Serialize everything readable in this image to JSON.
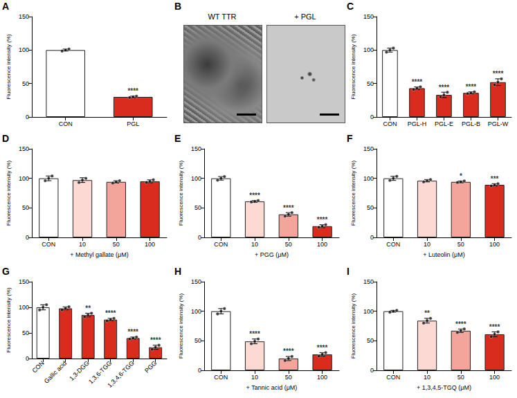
{
  "chart_data": [
    {
      "label": "A",
      "type": "bar",
      "categories": [
        "CON",
        "PGL"
      ],
      "values": [
        100,
        30
      ],
      "errors": [
        1.5,
        1.2
      ],
      "points": [
        [
          98.5,
          100,
          101.5
        ],
        [
          29,
          30,
          31
        ]
      ],
      "annotations": [
        null,
        "****"
      ],
      "colors": [
        "#ffffff",
        "#d92b1e"
      ],
      "ylabel": "Fluorescence intensity (%)",
      "ylim": [
        0,
        150
      ],
      "yticks": [
        0,
        50,
        100,
        150
      ]
    },
    {
      "label": "C",
      "type": "bar",
      "categories": [
        "CON",
        "PGL-H",
        "PGL-E",
        "PGL-B",
        "PGL-W"
      ],
      "values": [
        100,
        43,
        33,
        36,
        52
      ],
      "errors": [
        3,
        2,
        4,
        1.5,
        5
      ],
      "points": [
        [
          97,
          100,
          103
        ],
        [
          41,
          43,
          45
        ],
        [
          30,
          33,
          37
        ],
        [
          35,
          36,
          37.5
        ],
        [
          48,
          52,
          57
        ]
      ],
      "annotations": [
        null,
        "****",
        "****",
        "****",
        "****"
      ],
      "colors": [
        "#ffffff",
        "#d92b1e",
        "#d92b1e",
        "#d92b1e",
        "#d92b1e"
      ],
      "ylabel": "Fluorescence intensity (%)",
      "ylim": [
        0,
        150
      ],
      "yticks": [
        0,
        50,
        100,
        150
      ]
    },
    {
      "label": "D",
      "type": "bar",
      "categories": [
        "CON",
        "10",
        "50",
        "100"
      ],
      "values": [
        100,
        97,
        94,
        95
      ],
      "errors": [
        4,
        4,
        2,
        2.5
      ],
      "points": [
        [
          96,
          100,
          104
        ],
        [
          93,
          97,
          100
        ],
        [
          92,
          94,
          96
        ],
        [
          93,
          95,
          97.5
        ]
      ],
      "annotations": [
        null,
        null,
        null,
        null
      ],
      "colors": [
        "#ffffff",
        "#fcd9d3",
        "#f3a49b",
        "#d92b1e"
      ],
      "xlabel": "+ Methyl gallate (μM)",
      "ylabel": "Fluorescence intensity (%)",
      "ylim": [
        0,
        150
      ],
      "yticks": [
        0,
        50,
        100,
        150
      ]
    },
    {
      "label": "E",
      "type": "bar",
      "categories": [
        "CON",
        "10",
        "50",
        "100"
      ],
      "values": [
        100,
        61,
        39,
        19
      ],
      "errors": [
        3,
        1.5,
        3,
        2.5
      ],
      "points": [
        [
          97,
          100,
          103
        ],
        [
          60,
          61,
          62.5
        ],
        [
          36,
          39,
          42
        ],
        [
          17,
          19,
          21.5
        ]
      ],
      "annotations": [
        null,
        "****",
        "****",
        "****"
      ],
      "colors": [
        "#ffffff",
        "#fcd9d3",
        "#f3a49b",
        "#d92b1e"
      ],
      "xlabel": "+ PGG (μM)",
      "ylabel": "Fluorescence intensity (%)",
      "ylim": [
        0,
        150
      ],
      "yticks": [
        0,
        50,
        100,
        150
      ]
    },
    {
      "label": "F",
      "type": "bar",
      "categories": [
        "CON",
        "10",
        "50",
        "100"
      ],
      "values": [
        100,
        96,
        94,
        89
      ],
      "errors": [
        3.5,
        2,
        1.5,
        2
      ],
      "points": [
        [
          96.5,
          100,
          103.5
        ],
        [
          94,
          96,
          98
        ],
        [
          93,
          94,
          95.5
        ],
        [
          87,
          89,
          91
        ]
      ],
      "annotations": [
        null,
        null,
        "*",
        "***"
      ],
      "colors": [
        "#ffffff",
        "#fcd9d3",
        "#f3a49b",
        "#d92b1e"
      ],
      "xlabel": "+ Luteolin (μM)",
      "ylabel": "Fluorescence intensity (%)",
      "ylim": [
        0,
        150
      ],
      "yticks": [
        0,
        50,
        100,
        150
      ]
    },
    {
      "label": "G",
      "type": "bar",
      "categories": [
        "CON",
        "Gallic acid",
        "1,3-DGG",
        "1,3,6-TGG",
        "1,3,4,6-TGG",
        "PGG"
      ],
      "values": [
        100,
        98,
        85,
        76,
        40,
        22
      ],
      "errors": [
        5,
        3,
        3.5,
        2.5,
        2,
        4
      ],
      "points": [
        [
          95,
          100,
          105
        ],
        [
          95,
          98,
          101
        ],
        [
          81.5,
          85,
          88.5
        ],
        [
          73.5,
          76,
          78.5
        ],
        [
          38,
          40,
          42
        ],
        [
          18,
          22,
          26
        ]
      ],
      "annotations": [
        null,
        null,
        "**",
        "****",
        "****",
        "****"
      ],
      "colors": [
        "#ffffff",
        "#d92b1e",
        "#d92b1e",
        "#d92b1e",
        "#d92b1e",
        "#d92b1e"
      ],
      "ylabel": "Fluorescence intensity (%)",
      "ylim": [
        0,
        150
      ],
      "yticks": [
        0,
        50,
        100,
        150
      ]
    },
    {
      "label": "H",
      "type": "bar",
      "categories": [
        "CON",
        "10",
        "50",
        "100"
      ],
      "values": [
        100,
        49,
        20,
        27
      ],
      "errors": [
        4.5,
        4,
        3.5,
        3
      ],
      "points": [
        [
          95.5,
          100,
          104.5
        ],
        [
          45,
          49,
          53
        ],
        [
          16.5,
          20,
          23.5
        ],
        [
          24,
          27,
          30
        ]
      ],
      "annotations": [
        null,
        "****",
        "****",
        "****"
      ],
      "colors": [
        "#ffffff",
        "#fcd9d3",
        "#f3a49b",
        "#d92b1e"
      ],
      "xlabel": "+ Tannic acid (μM)",
      "ylabel": "Fluorescence intensity (%)",
      "ylim": [
        0,
        150
      ],
      "yticks": [
        0,
        50,
        100,
        150
      ]
    },
    {
      "label": "I",
      "type": "bar",
      "categories": [
        "CON",
        "10",
        "50",
        "100"
      ],
      "values": [
        100,
        84,
        67,
        61
      ],
      "errors": [
        1.5,
        4,
        3,
        4
      ],
      "points": [
        [
          98.5,
          100,
          101.5
        ],
        [
          80,
          84,
          88
        ],
        [
          64,
          67,
          70
        ],
        [
          57,
          61,
          65
        ]
      ],
      "annotations": [
        null,
        "**",
        "****",
        "****"
      ],
      "colors": [
        "#ffffff",
        "#fcd9d3",
        "#f3a49b",
        "#d92b1e"
      ],
      "xlabel": "+ 1,3,4,5-TGQ (μM)",
      "ylabel": "Fluorescence intensity (%)",
      "ylim": [
        0,
        150
      ],
      "yticks": [
        0,
        50,
        100,
        150
      ]
    }
  ],
  "micrograph": {
    "label": "B",
    "titles": [
      "WT TTR",
      "+ PGL"
    ]
  }
}
